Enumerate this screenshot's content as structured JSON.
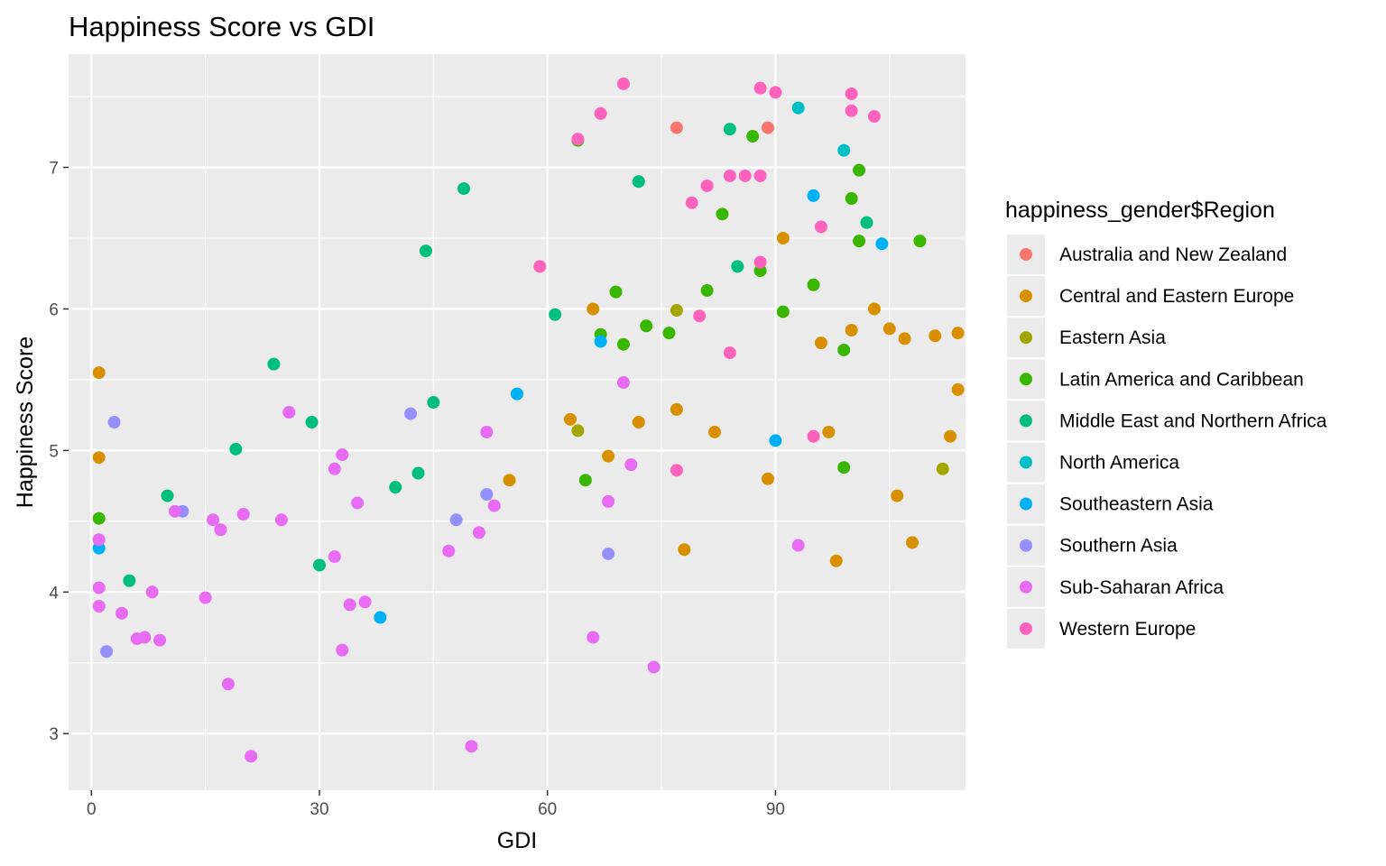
{
  "chart_data": {
    "type": "scatter",
    "title": "Happiness Score vs GDI",
    "xlabel": "GDI",
    "ylabel": "Happiness Score",
    "xlim": [
      -3,
      115
    ],
    "ylim": [
      2.6,
      7.8
    ],
    "x_ticks": [
      0,
      30,
      60,
      90
    ],
    "y_ticks": [
      3,
      4,
      5,
      6,
      7
    ],
    "x_tick_labels": [
      "0",
      "30",
      "60",
      "90"
    ],
    "y_tick_labels": [
      "3",
      "4",
      "5",
      "6",
      "7"
    ],
    "grid": true,
    "panel_background": "#ebebeb",
    "legend": {
      "title": "happiness_gender$Region",
      "position": "right"
    },
    "series": [
      {
        "name": "Australia and New Zealand",
        "color": "#F8766D",
        "points": [
          [
            77,
            7.28
          ],
          [
            89,
            7.28
          ]
        ]
      },
      {
        "name": "Central and Eastern Europe",
        "color": "#D89000",
        "points": [
          [
            1,
            5.55
          ],
          [
            1,
            4.95
          ],
          [
            55,
            4.79
          ],
          [
            63,
            5.22
          ],
          [
            66,
            6.0
          ],
          [
            68,
            4.96
          ],
          [
            72,
            5.2
          ],
          [
            77,
            5.29
          ],
          [
            78,
            4.3
          ],
          [
            82,
            5.13
          ],
          [
            89,
            4.8
          ],
          [
            91,
            6.5
          ],
          [
            96,
            5.76
          ],
          [
            97,
            5.13
          ],
          [
            98,
            4.22
          ],
          [
            100,
            5.85
          ],
          [
            103,
            6.0
          ],
          [
            105,
            5.86
          ],
          [
            106,
            4.68
          ],
          [
            107,
            5.79
          ],
          [
            108,
            4.35
          ],
          [
            111,
            5.81
          ],
          [
            113,
            5.1
          ],
          [
            114,
            5.83
          ],
          [
            114,
            5.43
          ]
        ]
      },
      {
        "name": "Eastern Asia",
        "color": "#A3A500",
        "points": [
          [
            64,
            5.14
          ],
          [
            77,
            5.99
          ],
          [
            112,
            4.87
          ]
        ]
      },
      {
        "name": "Latin America and Caribbean",
        "color": "#39B600",
        "points": [
          [
            1,
            4.52
          ],
          [
            64,
            7.19
          ],
          [
            65,
            4.79
          ],
          [
            67,
            5.82
          ],
          [
            69,
            6.12
          ],
          [
            70,
            5.75
          ],
          [
            73,
            5.88
          ],
          [
            76,
            5.83
          ],
          [
            81,
            6.13
          ],
          [
            83,
            6.67
          ],
          [
            87,
            7.22
          ],
          [
            88,
            6.27
          ],
          [
            91,
            5.98
          ],
          [
            95,
            6.17
          ],
          [
            99,
            5.71
          ],
          [
            99,
            4.88
          ],
          [
            100,
            6.78
          ],
          [
            101,
            6.98
          ],
          [
            101,
            6.48
          ],
          [
            109,
            6.48
          ]
        ]
      },
      {
        "name": "Middle East and Northern Africa",
        "color": "#00BF7D",
        "points": [
          [
            5,
            4.08
          ],
          [
            10,
            4.68
          ],
          [
            19,
            5.01
          ],
          [
            24,
            5.61
          ],
          [
            29,
            5.2
          ],
          [
            30,
            4.19
          ],
          [
            40,
            4.74
          ],
          [
            43,
            4.84
          ],
          [
            44,
            6.41
          ],
          [
            45,
            5.34
          ],
          [
            49,
            6.85
          ],
          [
            61,
            5.96
          ],
          [
            72,
            6.9
          ],
          [
            84,
            7.27
          ],
          [
            85,
            6.3
          ],
          [
            102,
            6.61
          ]
        ]
      },
      {
        "name": "North America",
        "color": "#00BFC4",
        "points": [
          [
            93,
            7.42
          ],
          [
            99,
            7.12
          ]
        ]
      },
      {
        "name": "Southeastern Asia",
        "color": "#00B0F6",
        "points": [
          [
            1,
            4.31
          ],
          [
            38,
            3.82
          ],
          [
            56,
            5.4
          ],
          [
            67,
            5.77
          ],
          [
            90,
            5.07
          ],
          [
            95,
            6.8
          ],
          [
            104,
            6.46
          ]
        ]
      },
      {
        "name": "Southern Asia",
        "color": "#9590FF",
        "points": [
          [
            2,
            3.58
          ],
          [
            3,
            5.2
          ],
          [
            12,
            4.57
          ],
          [
            42,
            5.26
          ],
          [
            48,
            4.51
          ],
          [
            52,
            4.69
          ],
          [
            68,
            4.27
          ]
        ]
      },
      {
        "name": "Sub-Saharan Africa",
        "color": "#E76BF3",
        "points": [
          [
            1,
            4.37
          ],
          [
            1,
            4.03
          ],
          [
            1,
            3.9
          ],
          [
            4,
            3.85
          ],
          [
            6,
            3.67
          ],
          [
            7,
            3.68
          ],
          [
            8,
            4.0
          ],
          [
            9,
            3.66
          ],
          [
            11,
            4.57
          ],
          [
            15,
            3.96
          ],
          [
            16,
            4.51
          ],
          [
            17,
            4.44
          ],
          [
            18,
            3.35
          ],
          [
            20,
            4.55
          ],
          [
            21,
            2.84
          ],
          [
            25,
            4.51
          ],
          [
            26,
            5.27
          ],
          [
            32,
            4.87
          ],
          [
            32,
            4.25
          ],
          [
            33,
            4.97
          ],
          [
            33,
            3.59
          ],
          [
            34,
            3.91
          ],
          [
            35,
            4.63
          ],
          [
            36,
            3.93
          ],
          [
            47,
            4.29
          ],
          [
            50,
            2.91
          ],
          [
            51,
            4.42
          ],
          [
            52,
            5.13
          ],
          [
            53,
            4.61
          ],
          [
            66,
            3.68
          ],
          [
            68,
            4.64
          ],
          [
            70,
            5.48
          ],
          [
            71,
            4.9
          ],
          [
            74,
            3.47
          ],
          [
            93,
            4.33
          ]
        ]
      },
      {
        "name": "Western Europe",
        "color": "#FF62BC",
        "points": [
          [
            59,
            6.3
          ],
          [
            64,
            7.2
          ],
          [
            67,
            7.38
          ],
          [
            70,
            7.59
          ],
          [
            77,
            4.86
          ],
          [
            79,
            6.75
          ],
          [
            80,
            5.95
          ],
          [
            81,
            6.87
          ],
          [
            84,
            6.94
          ],
          [
            84,
            5.69
          ],
          [
            86,
            6.94
          ],
          [
            88,
            6.94
          ],
          [
            88,
            7.56
          ],
          [
            88,
            6.33
          ],
          [
            90,
            7.53
          ],
          [
            95,
            5.1
          ],
          [
            96,
            6.58
          ],
          [
            100,
            7.52
          ],
          [
            100,
            7.4
          ],
          [
            103,
            7.36
          ]
        ]
      }
    ]
  }
}
